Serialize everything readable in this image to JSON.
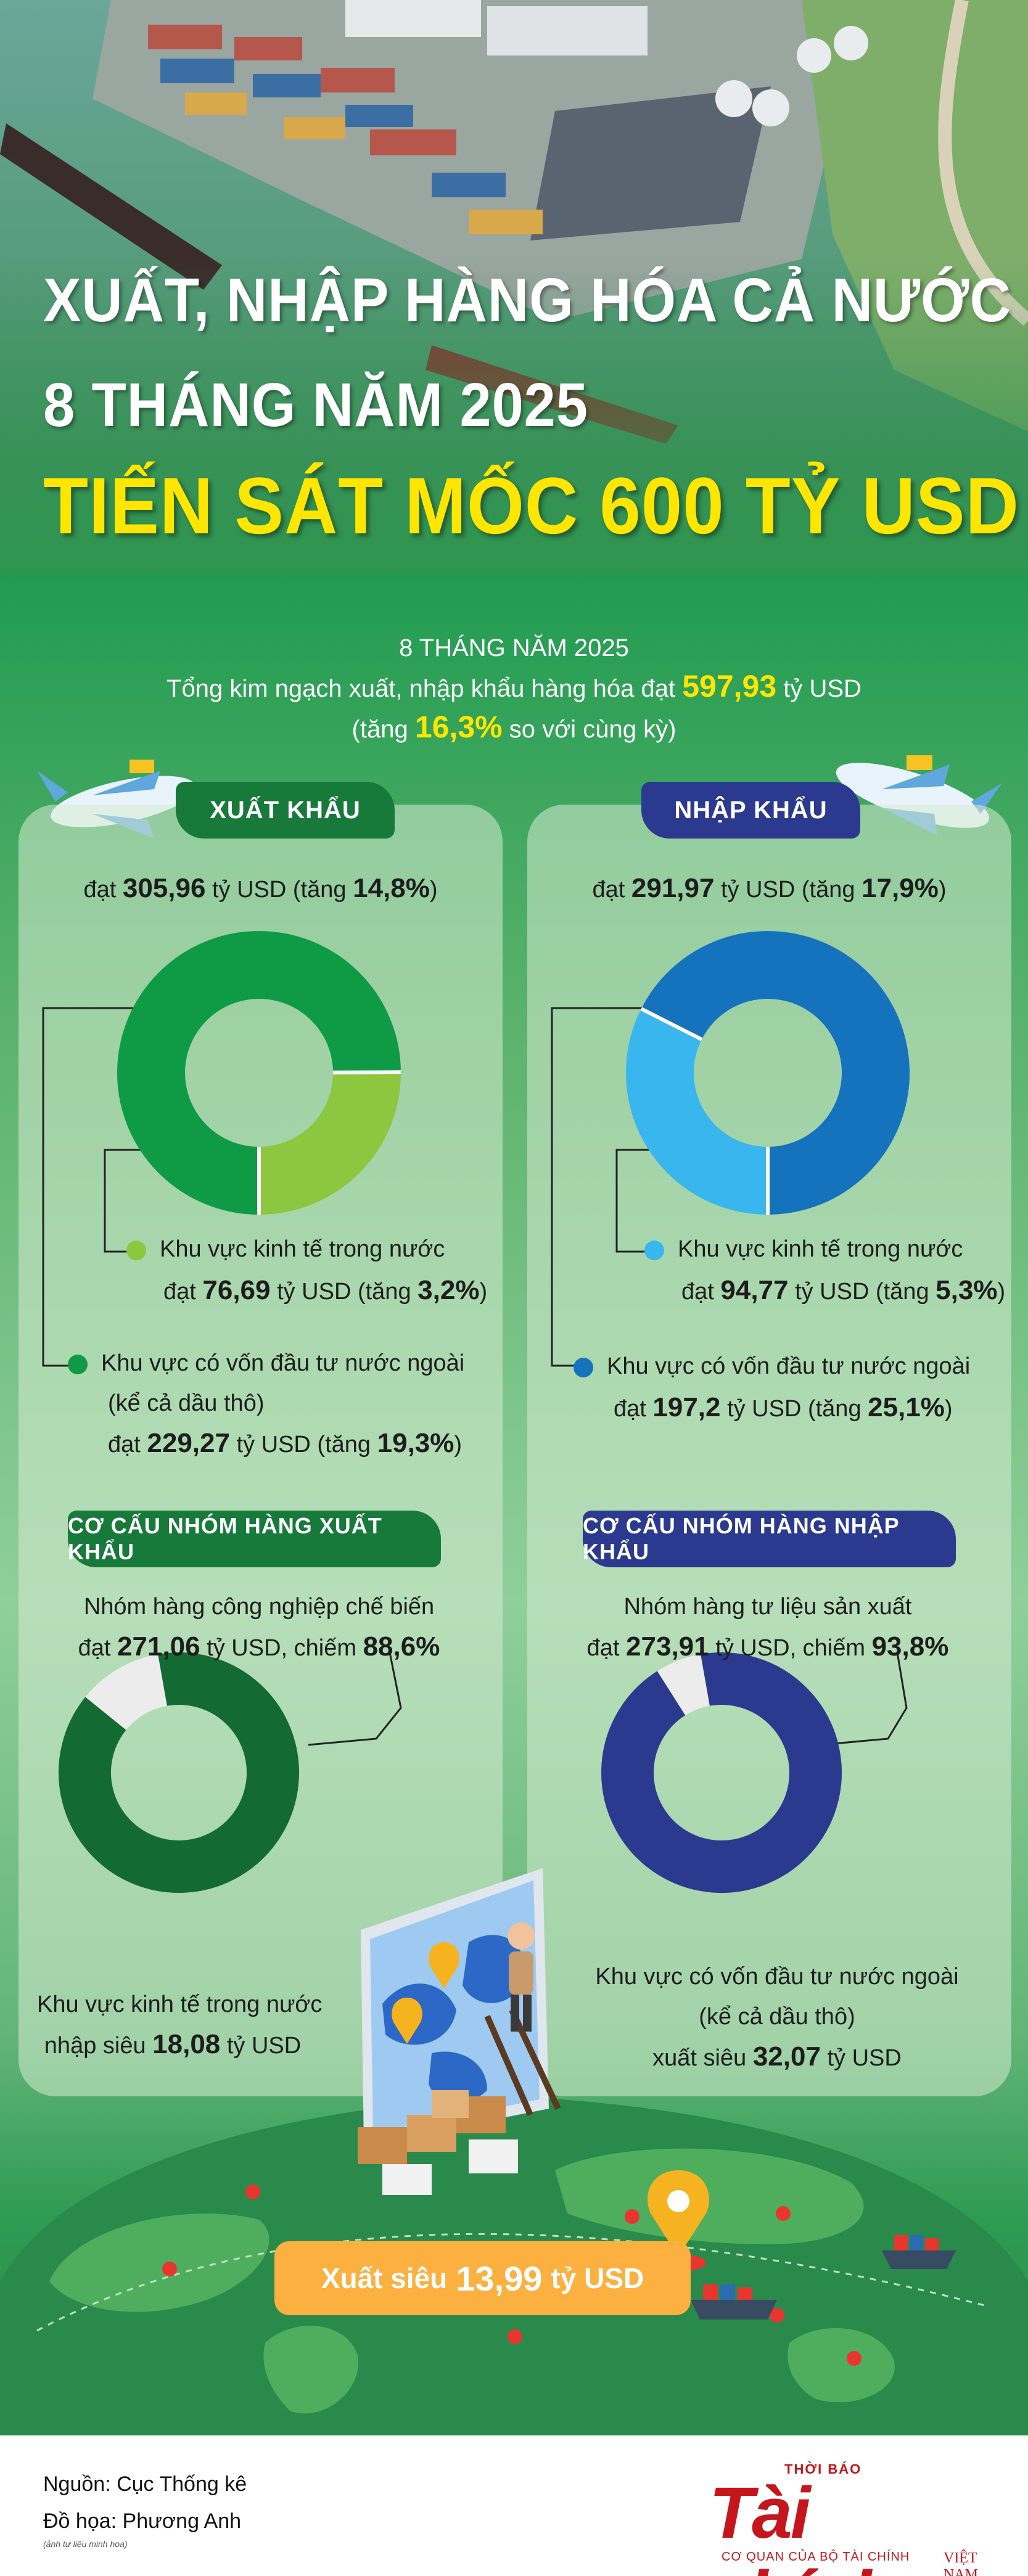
{
  "hero": {
    "title_line1": "XUẤT, NHẬP HÀNG HÓA CẢ NƯỚC",
    "title_line2": "8 THÁNG NĂM 2025",
    "title_line3": "TIẾN SÁT MỐC 600 TỶ USD"
  },
  "summary": {
    "period": "8 THÁNG NĂM 2025",
    "line1_pre": "Tổng kim ngạch xuất, nhập khẩu hàng hóa đạt",
    "line1_value": "597,93",
    "line1_unit": "tỷ USD",
    "line2_pre": "(tăng",
    "line2_value": "16,3%",
    "line2_post": "so với cùng kỳ)"
  },
  "export": {
    "badge": "XUẤT KHẨU",
    "total_pre": "đạt",
    "total_value": "305,96",
    "total_mid": "tỷ USD (tăng",
    "total_growth": "14,8%",
    "total_post": ")",
    "domestic": {
      "label": "Khu vực kinh tế trong nước",
      "pre": "đạt",
      "value": "76,69",
      "mid": "tỷ USD (tăng",
      "growth": "3,2%",
      "post": ")"
    },
    "fdi": {
      "label": "Khu vực có vốn đầu tư nước ngoài",
      "label2": "(kể cả dầu thô)",
      "pre": "đạt",
      "value": "229,27",
      "mid": "tỷ USD (tăng",
      "growth": "19,3%",
      "post": ")"
    },
    "structure_badge": "CƠ CẤU NHÓM HÀNG XUẤT KHẨU",
    "group_label": "Nhóm hàng công nghiệp chế biến",
    "group_pre": "đạt",
    "group_value": "271,06",
    "group_mid": "tỷ USD, chiếm",
    "group_share": "88,6%",
    "balance_label": "Khu vực kinh tế trong nước",
    "balance_pre": "nhập siêu",
    "balance_value": "18,08",
    "balance_unit": "tỷ USD"
  },
  "import": {
    "badge": "NHẬP KHẨU",
    "total_pre": "đạt",
    "total_value": "291,97",
    "total_mid": "tỷ USD (tăng",
    "total_growth": "17,9%",
    "total_post": ")",
    "domestic": {
      "label": "Khu vực kinh tế trong nước",
      "pre": "đạt",
      "value": "94,77",
      "mid": "tỷ USD (tăng",
      "growth": "5,3%",
      "post": ")"
    },
    "fdi": {
      "label": "Khu vực có vốn đầu tư nước ngoài",
      "pre": "đạt",
      "value": "197,2",
      "mid": "tỷ USD (tăng",
      "growth": "25,1%",
      "post": ")"
    },
    "structure_badge": "CƠ CẤU NHÓM HÀNG NHẬP KHẨU",
    "group_label": "Nhóm hàng tư liệu sản xuất",
    "group_pre": "đạt",
    "group_value": "273,91",
    "group_mid": "tỷ USD, chiếm",
    "group_share": "93,8%",
    "balance_label": "Khu vực có vốn đầu tư nước ngoài",
    "balance_label2": "(kể cả dầu thô)",
    "balance_pre": "xuất siêu",
    "balance_value": "32,07",
    "balance_unit": "tỷ USD"
  },
  "surplus": {
    "pre": "Xuất siêu",
    "value": "13,99",
    "unit": "tỷ USD"
  },
  "footer": {
    "source": "Nguồn: Cục Thống kê",
    "design": "Đồ họa: Phương Anh",
    "note": "(ảnh tư liệu minh họa)",
    "logo_small": "THỜI BÁO",
    "logo_name": "Tài chính",
    "logo_sub": "CƠ QUAN CỦA BỘ TÀI CHÍNH",
    "logo_vn": "VIỆT NAM"
  },
  "chart_data": [
    {
      "type": "pie",
      "name": "export",
      "categories": [
        "Khu vực kinh tế trong nước",
        "Khu vực có vốn đầu tư nước ngoài"
      ],
      "values": [
        76.69,
        229.27
      ],
      "colors": [
        "#8dc63f",
        "#0f9a45"
      ]
    },
    {
      "type": "pie",
      "name": "import",
      "categories": [
        "Khu vực kinh tế trong nước",
        "Khu vực có vốn đầu tư nước ngoài"
      ],
      "values": [
        94.77,
        197.2
      ],
      "colors": [
        "#3ab6ee",
        "#1572bd"
      ]
    },
    {
      "type": "pie",
      "name": "export-structure",
      "categories": [
        "Nhóm hàng công nghiệp chế biến",
        "Khác"
      ],
      "values": [
        88.6,
        11.4
      ],
      "colors": [
        "#146a33",
        "#ececec"
      ]
    },
    {
      "type": "pie",
      "name": "import-structure",
      "categories": [
        "Nhóm hàng tư liệu sản xuất",
        "Khác"
      ],
      "values": [
        93.8,
        6.2
      ],
      "colors": [
        "#2b3a8f",
        "#ececec"
      ]
    }
  ]
}
